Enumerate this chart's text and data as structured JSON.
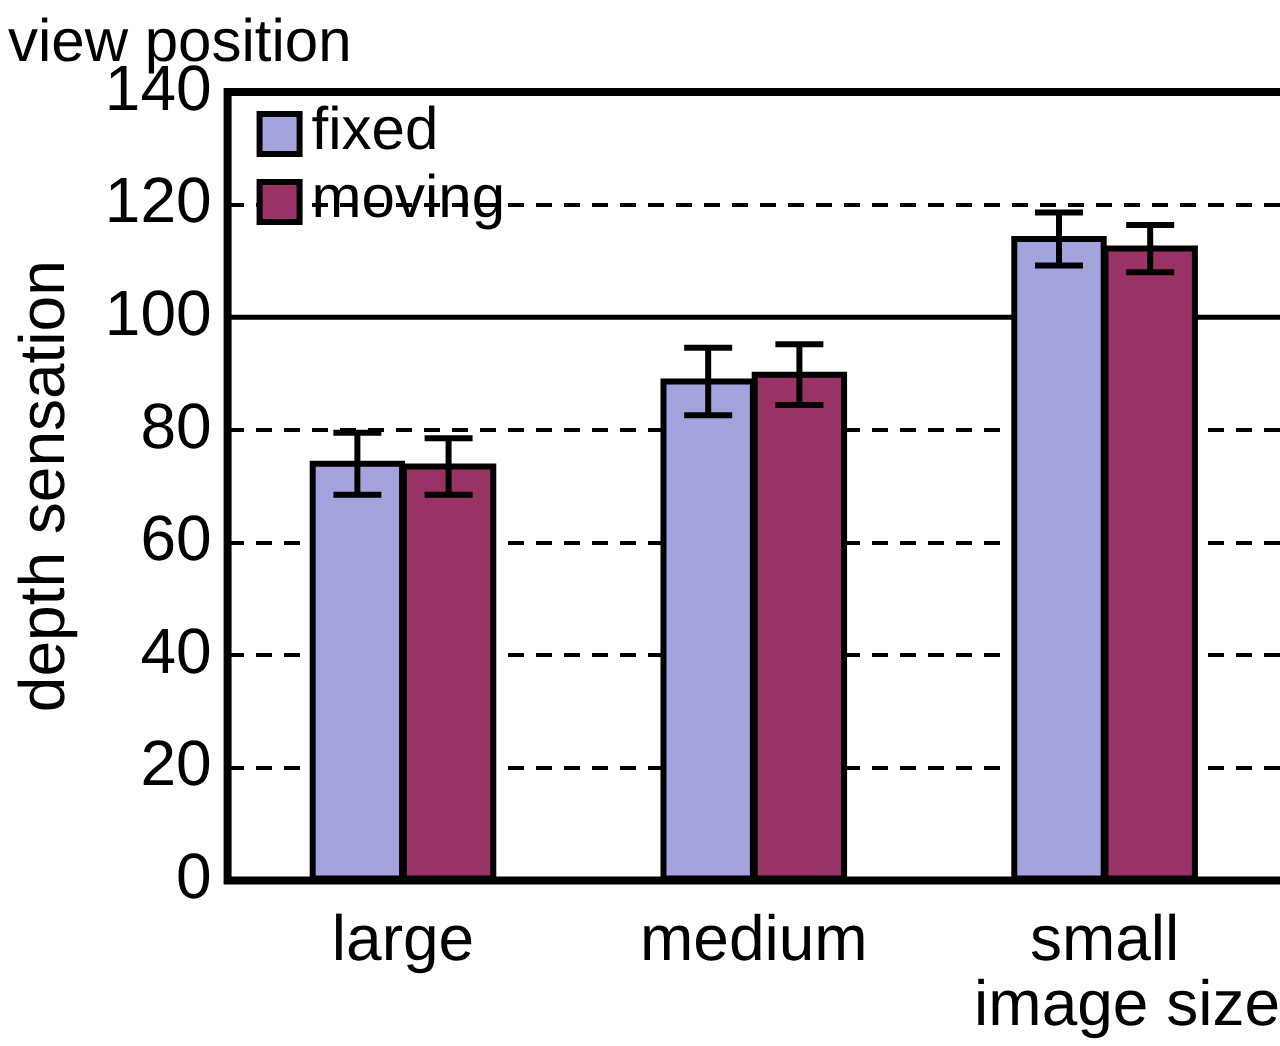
{
  "chart_data": {
    "type": "bar",
    "title": "view position",
    "xlabel": "image size",
    "ylabel": "depth sensation",
    "categories": [
      "large",
      "medium",
      "small"
    ],
    "series": [
      {
        "name": "fixed",
        "color": "#a3a3de",
        "values": [
          74,
          88.6,
          113.9
        ],
        "errors": [
          5.5,
          6,
          4.7
        ]
      },
      {
        "name": "moving",
        "color": "#993366",
        "values": [
          73.5,
          89.8,
          112.2
        ],
        "errors": [
          5,
          5.4,
          4.2
        ]
      }
    ],
    "ylim": [
      0,
      140
    ],
    "yticks": [
      0,
      20,
      40,
      60,
      80,
      100,
      120,
      140
    ],
    "grid": "y",
    "line_style": "dashed",
    "legend": "top left",
    "ref_lines": [
      {
        "axis": "y",
        "value": 100,
        "label": null,
        "line_style": "solid"
      }
    ]
  }
}
